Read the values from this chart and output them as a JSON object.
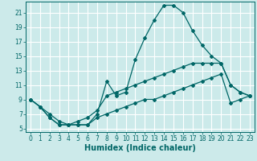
{
  "title": "",
  "xlabel": "Humidex (Indice chaleur)",
  "ylabel": "",
  "bg_color": "#cceaea",
  "line_color": "#006666",
  "grid_color": "#ffffff",
  "xlim": [
    -0.5,
    23.5
  ],
  "ylim": [
    4.5,
    22.5
  ],
  "xticks": [
    0,
    1,
    2,
    3,
    4,
    5,
    6,
    7,
    8,
    9,
    10,
    11,
    12,
    13,
    14,
    15,
    16,
    17,
    18,
    19,
    20,
    21,
    22,
    23
  ],
  "yticks": [
    5,
    7,
    9,
    11,
    13,
    15,
    17,
    19,
    21
  ],
  "line1_x": [
    0,
    1,
    2,
    3,
    4,
    5,
    6,
    7,
    8,
    9,
    10,
    11,
    12,
    13,
    14,
    15,
    16,
    17,
    18,
    19,
    20,
    21,
    22,
    23
  ],
  "line1_y": [
    9,
    8,
    6.5,
    5.5,
    5.5,
    5.5,
    5.5,
    7,
    11.5,
    9.5,
    10,
    14.5,
    17.5,
    20,
    22,
    22,
    21,
    18.5,
    16.5,
    15,
    14,
    11,
    10,
    9.5
  ],
  "line2_x": [
    0,
    1,
    2,
    3,
    4,
    5,
    6,
    7,
    8,
    9,
    10,
    11,
    12,
    13,
    14,
    15,
    16,
    17,
    18,
    19,
    20,
    21,
    22,
    23
  ],
  "line2_y": [
    9,
    8,
    7,
    6,
    5.5,
    6,
    6.5,
    7.5,
    9.5,
    10,
    10.5,
    11,
    11.5,
    12,
    12.5,
    13,
    13.5,
    14,
    14,
    14,
    14,
    11,
    10,
    9.5
  ],
  "line3_x": [
    0,
    1,
    2,
    3,
    4,
    5,
    6,
    7,
    8,
    9,
    10,
    11,
    12,
    13,
    14,
    15,
    16,
    17,
    18,
    19,
    20,
    21,
    22,
    23
  ],
  "line3_y": [
    9,
    8,
    6.5,
    5.5,
    5.5,
    5.5,
    5.5,
    6.5,
    7,
    7.5,
    8,
    8.5,
    9,
    9,
    9.5,
    10,
    10.5,
    11,
    11.5,
    12,
    12.5,
    8.5,
    9,
    9.5
  ],
  "marker": "D",
  "marker_size": 2,
  "line_width": 0.9,
  "tick_fontsize": 5.5,
  "xlabel_fontsize": 7.0
}
